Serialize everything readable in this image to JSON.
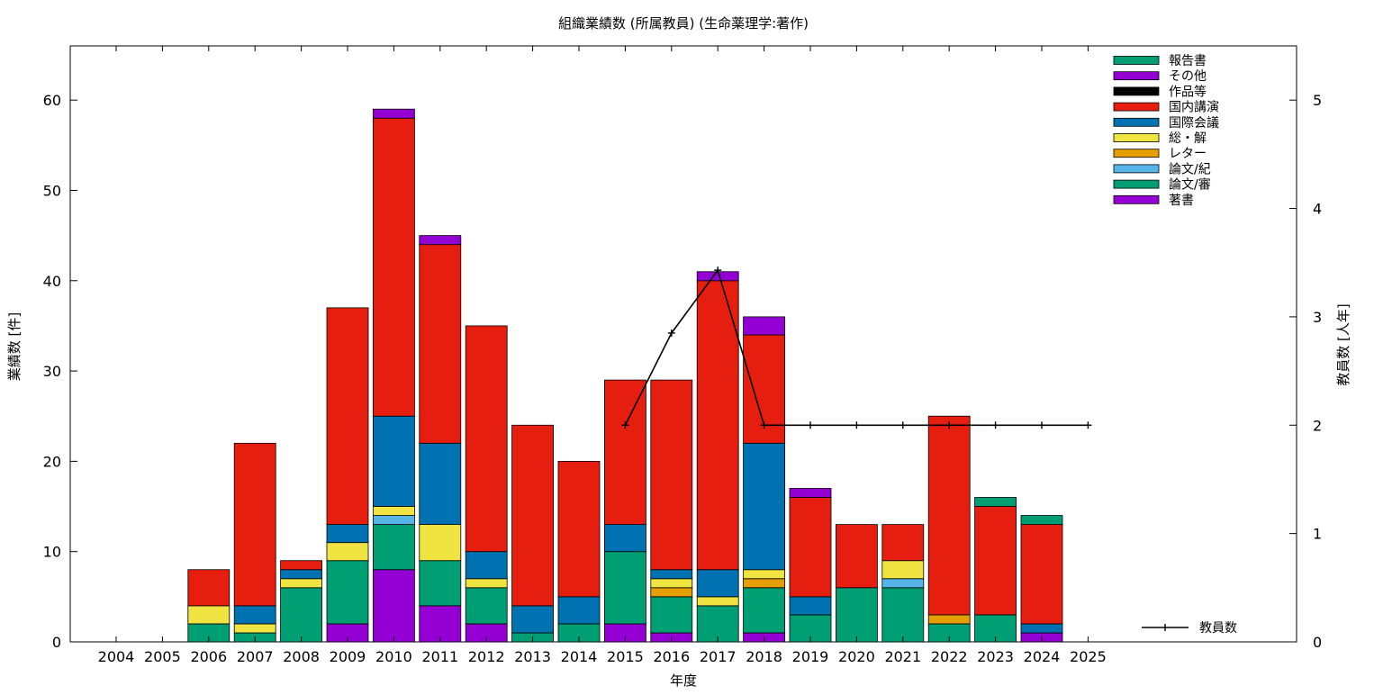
{
  "chart_data": {
    "type": "bar",
    "title": "組織業績数 (所属教員) (生命薬理学:著作)",
    "xlabel": "年度",
    "ylabel": "業績数 [件]",
    "y2label": "教員数 [人年]",
    "categories": [
      "2004",
      "2005",
      "2006",
      "2007",
      "2008",
      "2009",
      "2010",
      "2011",
      "2012",
      "2013",
      "2014",
      "2015",
      "2016",
      "2017",
      "2018",
      "2019",
      "2020",
      "2021",
      "2022",
      "2023",
      "2024",
      "2025"
    ],
    "ylim": [
      0,
      66
    ],
    "y2lim": [
      0,
      5.5
    ],
    "yticks": [
      0,
      10,
      20,
      30,
      40,
      50,
      60
    ],
    "y2ticks": [
      0,
      1,
      2,
      3,
      4,
      5
    ],
    "stacked": true,
    "legend_position": "top-right",
    "series": [
      {
        "name": "著書",
        "color": "#9400d3",
        "values": [
          0,
          0,
          0,
          0,
          0,
          2,
          8,
          4,
          2,
          0,
          0,
          2,
          1,
          0,
          1,
          0,
          0,
          0,
          0,
          0,
          1,
          0
        ]
      },
      {
        "name": "論文/審",
        "color": "#009e73",
        "values": [
          0,
          0,
          2,
          1,
          6,
          7,
          5,
          5,
          4,
          1,
          2,
          8,
          4,
          4,
          5,
          3,
          6,
          6,
          2,
          3,
          0,
          0
        ]
      },
      {
        "name": "論文/紀",
        "color": "#56b4e9",
        "values": [
          0,
          0,
          0,
          0,
          0,
          0,
          1,
          0,
          0,
          0,
          0,
          0,
          0,
          0,
          0,
          0,
          0,
          1,
          0,
          0,
          0,
          0
        ]
      },
      {
        "name": "レター",
        "color": "#e69f00",
        "values": [
          0,
          0,
          0,
          0,
          0,
          0,
          0,
          0,
          0,
          0,
          0,
          0,
          1,
          0,
          1,
          0,
          0,
          0,
          1,
          0,
          0,
          0
        ]
      },
      {
        "name": "総・解",
        "color": "#f0e442",
        "values": [
          0,
          0,
          2,
          1,
          1,
          2,
          1,
          4,
          1,
          0,
          0,
          0,
          1,
          1,
          1,
          0,
          0,
          2,
          0,
          0,
          0,
          0
        ]
      },
      {
        "name": "国際会議",
        "color": "#0072b2",
        "values": [
          0,
          0,
          0,
          2,
          1,
          2,
          10,
          9,
          3,
          3,
          3,
          3,
          1,
          3,
          14,
          2,
          0,
          0,
          0,
          0,
          1,
          0
        ]
      },
      {
        "name": "国内講演",
        "color": "#e51e10",
        "values": [
          0,
          0,
          4,
          18,
          1,
          24,
          33,
          22,
          25,
          20,
          15,
          16,
          21,
          32,
          12,
          11,
          7,
          4,
          22,
          12,
          11,
          0
        ]
      },
      {
        "name": "作品等",
        "color": "#000000",
        "values": [
          0,
          0,
          0,
          0,
          0,
          0,
          0,
          0,
          0,
          0,
          0,
          0,
          0,
          0,
          0,
          0,
          0,
          0,
          0,
          0,
          0,
          0
        ]
      },
      {
        "name": "その他",
        "color": "#9400d3",
        "values": [
          0,
          0,
          0,
          0,
          0,
          0,
          1,
          1,
          0,
          0,
          0,
          0,
          0,
          1,
          2,
          1,
          0,
          0,
          0,
          0,
          0,
          0
        ]
      },
      {
        "name": "報告書",
        "color": "#009e73",
        "values": [
          0,
          0,
          0,
          0,
          0,
          0,
          0,
          0,
          0,
          0,
          0,
          0,
          0,
          0,
          0,
          0,
          0,
          0,
          0,
          1,
          1,
          0
        ]
      }
    ],
    "line_series": {
      "name": "教員数",
      "axis": "y2",
      "color": "#000000",
      "points": [
        {
          "x": "2015",
          "y": 2
        },
        {
          "x": "2016",
          "y": 2.85
        },
        {
          "x": "2017",
          "y": 3.43
        },
        {
          "x": "2018",
          "y": 2
        },
        {
          "x": "2019",
          "y": 2
        },
        {
          "x": "2020",
          "y": 2
        },
        {
          "x": "2021",
          "y": 2
        },
        {
          "x": "2022",
          "y": 2
        },
        {
          "x": "2023",
          "y": 2
        },
        {
          "x": "2024",
          "y": 2
        },
        {
          "x": "2025",
          "y": 2
        }
      ]
    }
  }
}
